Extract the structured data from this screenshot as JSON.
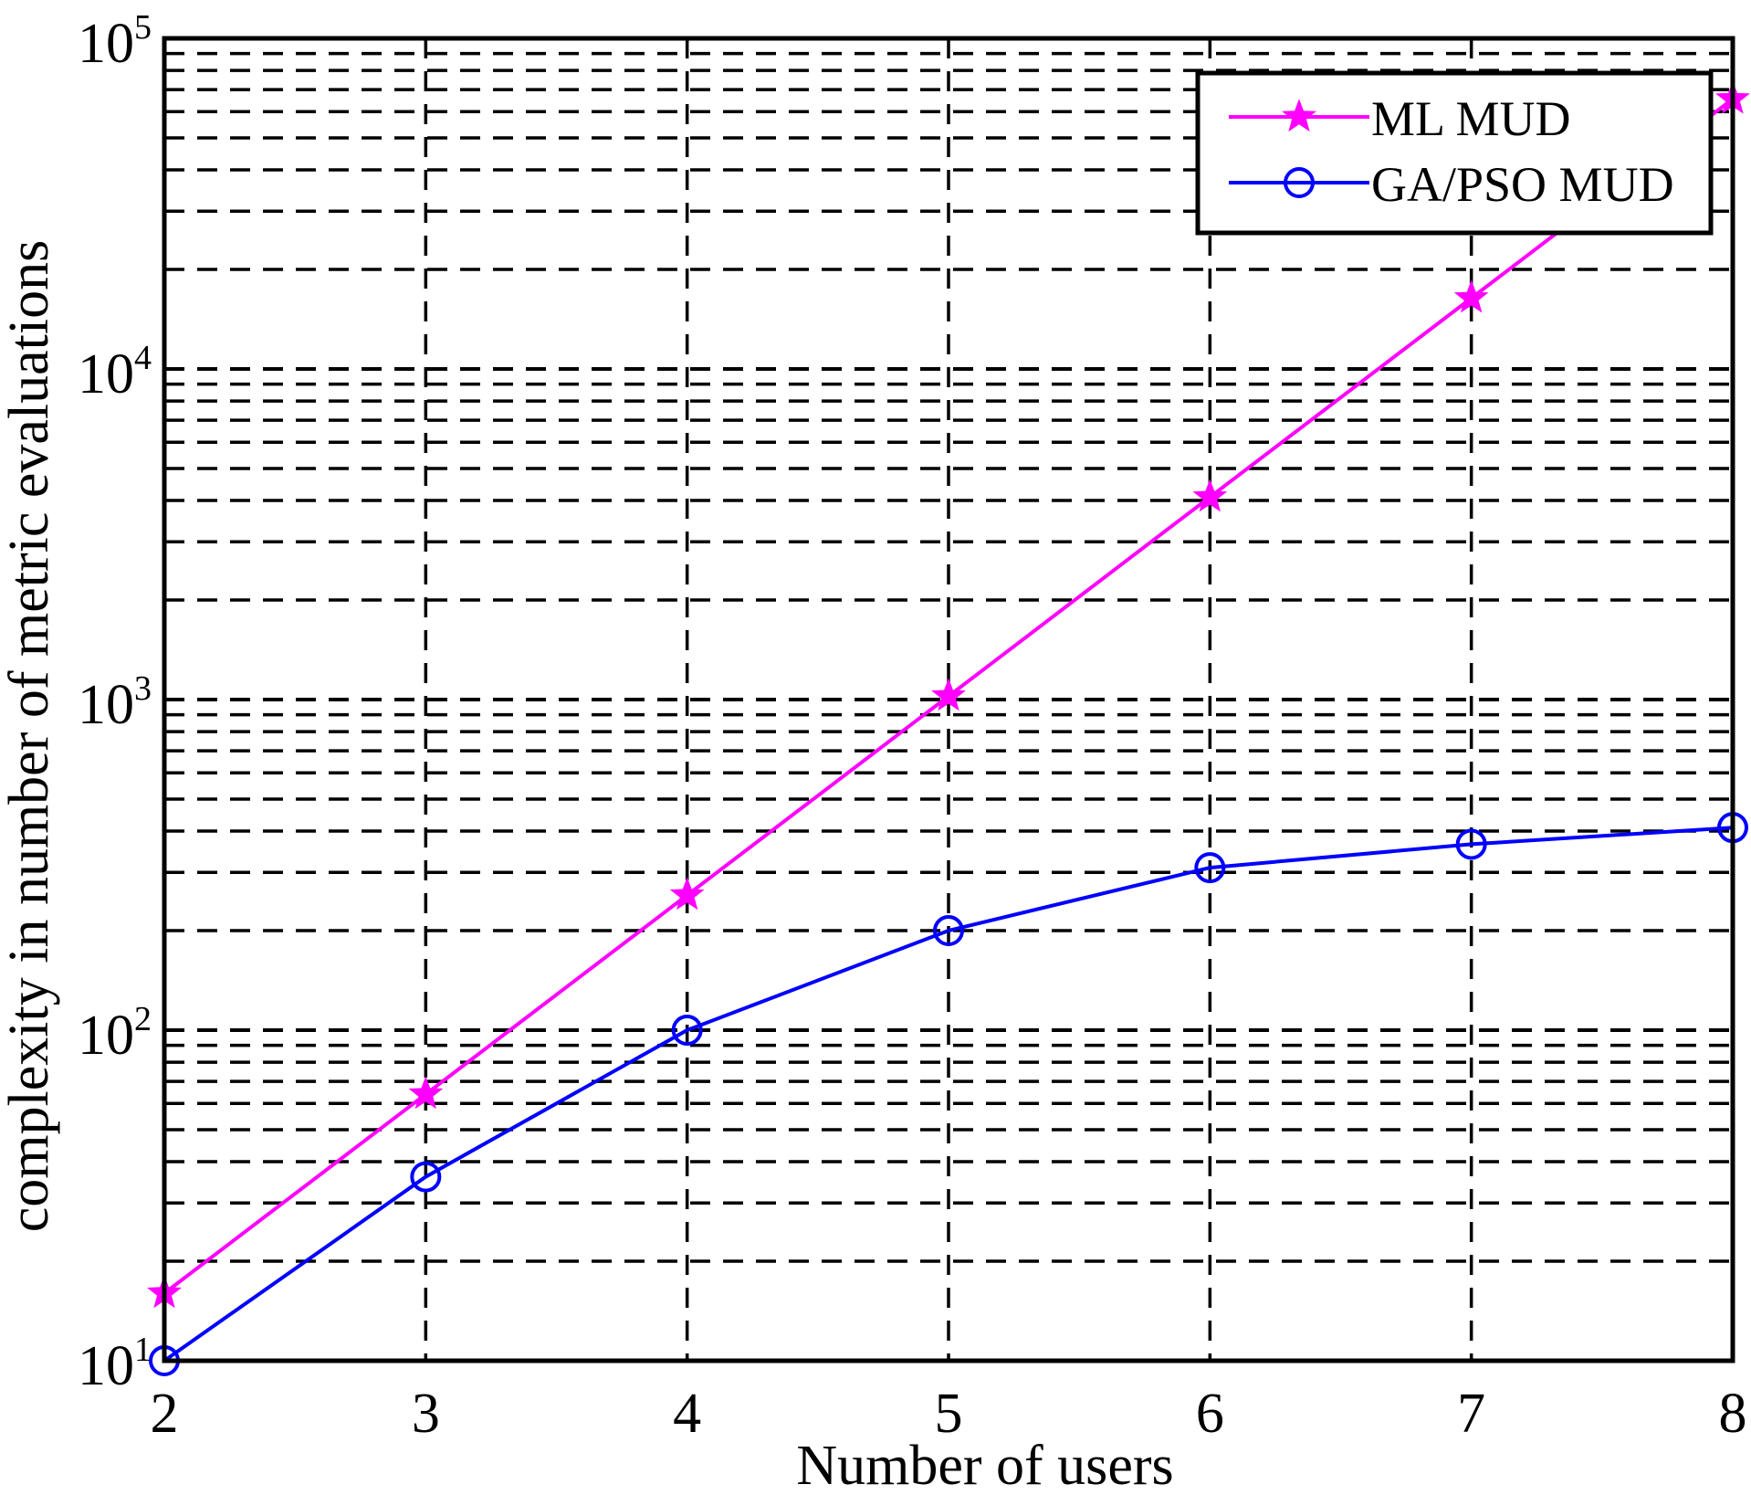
{
  "chart_data": {
    "type": "line",
    "title": "",
    "xlabel": "Number of users",
    "ylabel": "complexity in number of metric evaluations",
    "x": [
      2,
      3,
      4,
      5,
      6,
      7,
      8
    ],
    "xlim": [
      2,
      8
    ],
    "ylim": [
      10,
      100000
    ],
    "yscale": "log",
    "grid": true,
    "legend_position": "top-right",
    "x_ticks": [
      "2",
      "3",
      "4",
      "5",
      "6",
      "7",
      "8"
    ],
    "y_ticks": [
      {
        "base": "10",
        "exp": "1",
        "value": 10
      },
      {
        "base": "10",
        "exp": "2",
        "value": 100
      },
      {
        "base": "10",
        "exp": "3",
        "value": 1000
      },
      {
        "base": "10",
        "exp": "4",
        "value": 10000
      },
      {
        "base": "10",
        "exp": "5",
        "value": 100000
      }
    ],
    "series": [
      {
        "name": "ML MUD",
        "color": "#ff00ff",
        "marker": "star",
        "values": [
          16,
          64,
          256,
          1024,
          4096,
          16384,
          65536
        ]
      },
      {
        "name": "GA/PSO MUD",
        "color": "#0000ff",
        "marker": "circle",
        "values": [
          10,
          36,
          100,
          200,
          310,
          365,
          410
        ]
      }
    ]
  }
}
